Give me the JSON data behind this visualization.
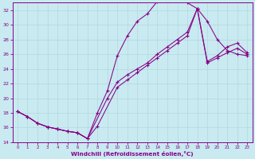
{
  "xlabel": "Windchill (Refroidissement éolien,°C)",
  "bg_color": "#c8eaf0",
  "grid_color": "#b0d8e0",
  "line_color": "#880088",
  "xlim": [
    -0.5,
    23.5
  ],
  "ylim": [
    14,
    33
  ],
  "xticks": [
    0,
    1,
    2,
    3,
    4,
    5,
    6,
    7,
    8,
    9,
    10,
    11,
    12,
    13,
    14,
    15,
    16,
    17,
    18,
    19,
    20,
    21,
    22,
    23
  ],
  "yticks": [
    14,
    16,
    18,
    20,
    22,
    24,
    26,
    28,
    30,
    32
  ],
  "line1_x": [
    0,
    1,
    2,
    3,
    4,
    5,
    6,
    7,
    9,
    10,
    11,
    12,
    13,
    14,
    15,
    16,
    17,
    18,
    19,
    20,
    21,
    22,
    23
  ],
  "line1_y": [
    18.2,
    17.5,
    16.6,
    16.1,
    15.8,
    15.5,
    15.3,
    14.5,
    20.0,
    22.2,
    23.2,
    24.0,
    24.8,
    26.0,
    27.0,
    28.0,
    29.0,
    32.2,
    24.8,
    25.5,
    26.2,
    26.8,
    26.0
  ],
  "line2_x": [
    0,
    1,
    2,
    3,
    4,
    5,
    6,
    7,
    8,
    10,
    11,
    12,
    13,
    14,
    15,
    16,
    17,
    18,
    19,
    20,
    21,
    22,
    23
  ],
  "line2_y": [
    18.2,
    17.5,
    16.6,
    16.1,
    15.8,
    15.5,
    15.3,
    14.5,
    16.2,
    21.5,
    22.5,
    23.5,
    24.5,
    25.5,
    26.5,
    27.5,
    28.5,
    32.2,
    25.0,
    25.8,
    27.0,
    27.5,
    26.2
  ],
  "line3_x": [
    0,
    1,
    2,
    3,
    4,
    5,
    6,
    7,
    8,
    9,
    10,
    11,
    12,
    13,
    14,
    15,
    16,
    17,
    18,
    19,
    20,
    21,
    22,
    23
  ],
  "line3_y": [
    18.2,
    17.5,
    16.6,
    16.1,
    15.8,
    15.5,
    15.3,
    14.5,
    18.0,
    21.0,
    25.8,
    28.5,
    30.5,
    31.5,
    33.2,
    33.3,
    33.3,
    33.0,
    32.2,
    30.5,
    28.0,
    26.5,
    26.0,
    25.8
  ]
}
